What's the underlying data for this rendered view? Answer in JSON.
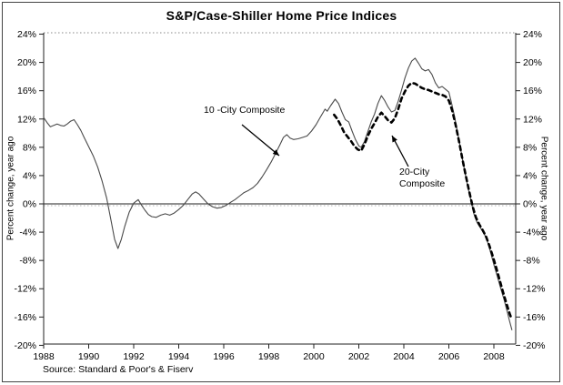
{
  "chart_data": {
    "type": "line",
    "title": "S&P/Case-Shiller Home Price Indices",
    "ylabel_left": "Percent change, year ago",
    "ylabel_right": "Percent change, year ago",
    "source": "Source: Standard & Poor's & Fiserv",
    "xlim": [
      1988,
      2008.97
    ],
    "ylim": [
      -20,
      24
    ],
    "x_ticks": [
      1988,
      1990,
      1992,
      1994,
      1996,
      1998,
      2000,
      2002,
      2004,
      2006,
      2008
    ],
    "y_ticks": [
      24,
      20,
      16,
      12,
      8,
      4,
      0,
      -4,
      -8,
      -12,
      -16,
      -20
    ],
    "y_tick_suffix": "%",
    "grid": {
      "top_dotted_line": true,
      "zero_axis_line": true,
      "legend": "none"
    },
    "colors": {
      "ten_city_line": "#4a4a4a",
      "twenty_city_line": "#000000"
    },
    "annotations": [
      {
        "text": "10 -City Composite",
        "lines": [
          "10 -City Composite"
        ]
      },
      {
        "text": "20-City Composite",
        "lines": [
          "20-City",
          "Composite"
        ]
      }
    ],
    "series": [
      {
        "name": "10 -City Composite",
        "style": "solid",
        "color": "#4a4a4a",
        "width": 1.1,
        "dash": "",
        "data_name": "ten-city-composite-line",
        "points": [
          [
            1988.0,
            12.2
          ],
          [
            1988.15,
            11.5
          ],
          [
            1988.3,
            10.9
          ],
          [
            1988.45,
            11.1
          ],
          [
            1988.6,
            11.3
          ],
          [
            1988.75,
            11.1
          ],
          [
            1988.9,
            11.0
          ],
          [
            1989.05,
            11.3
          ],
          [
            1989.2,
            11.7
          ],
          [
            1989.35,
            11.9
          ],
          [
            1989.5,
            11.2
          ],
          [
            1989.65,
            10.4
          ],
          [
            1989.8,
            9.4
          ],
          [
            1990.0,
            8.1
          ],
          [
            1990.2,
            6.8
          ],
          [
            1990.4,
            5.2
          ],
          [
            1990.6,
            3.2
          ],
          [
            1990.8,
            0.8
          ],
          [
            1991.0,
            -2.5
          ],
          [
            1991.15,
            -5.0
          ],
          [
            1991.3,
            -6.3
          ],
          [
            1991.45,
            -5.0
          ],
          [
            1991.6,
            -3.2
          ],
          [
            1991.8,
            -1.2
          ],
          [
            1992.0,
            0.1
          ],
          [
            1992.2,
            0.6
          ],
          [
            1992.35,
            -0.2
          ],
          [
            1992.5,
            -0.9
          ],
          [
            1992.65,
            -1.5
          ],
          [
            1992.8,
            -1.8
          ],
          [
            1993.0,
            -1.9
          ],
          [
            1993.2,
            -1.6
          ],
          [
            1993.4,
            -1.4
          ],
          [
            1993.6,
            -1.6
          ],
          [
            1993.8,
            -1.3
          ],
          [
            1994.0,
            -0.8
          ],
          [
            1994.2,
            -0.2
          ],
          [
            1994.4,
            0.6
          ],
          [
            1994.6,
            1.4
          ],
          [
            1994.75,
            1.7
          ],
          [
            1994.9,
            1.4
          ],
          [
            1995.1,
            0.7
          ],
          [
            1995.3,
            0.0
          ],
          [
            1995.5,
            -0.4
          ],
          [
            1995.7,
            -0.6
          ],
          [
            1995.9,
            -0.5
          ],
          [
            1996.1,
            -0.2
          ],
          [
            1996.3,
            0.2
          ],
          [
            1996.5,
            0.6
          ],
          [
            1996.7,
            1.1
          ],
          [
            1996.9,
            1.6
          ],
          [
            1997.1,
            1.9
          ],
          [
            1997.3,
            2.3
          ],
          [
            1997.5,
            2.9
          ],
          [
            1997.7,
            3.8
          ],
          [
            1997.9,
            4.8
          ],
          [
            1998.1,
            5.9
          ],
          [
            1998.3,
            7.1
          ],
          [
            1998.5,
            8.4
          ],
          [
            1998.65,
            9.4
          ],
          [
            1998.8,
            9.8
          ],
          [
            1998.95,
            9.3
          ],
          [
            1999.1,
            9.1
          ],
          [
            1999.3,
            9.2
          ],
          [
            1999.5,
            9.4
          ],
          [
            1999.7,
            9.6
          ],
          [
            1999.9,
            10.3
          ],
          [
            2000.1,
            11.2
          ],
          [
            2000.3,
            12.3
          ],
          [
            2000.5,
            13.4
          ],
          [
            2000.6,
            13.1
          ],
          [
            2000.75,
            13.9
          ],
          [
            2000.95,
            14.8
          ],
          [
            2001.1,
            14.2
          ],
          [
            2001.25,
            13.0
          ],
          [
            2001.4,
            11.9
          ],
          [
            2001.55,
            11.6
          ],
          [
            2001.7,
            10.3
          ],
          [
            2001.85,
            9.1
          ],
          [
            2002.0,
            8.2
          ],
          [
            2002.1,
            8.0
          ],
          [
            2002.25,
            8.8
          ],
          [
            2002.4,
            10.2
          ],
          [
            2002.55,
            11.6
          ],
          [
            2002.7,
            12.7
          ],
          [
            2002.85,
            14.2
          ],
          [
            2003.0,
            15.3
          ],
          [
            2003.15,
            14.6
          ],
          [
            2003.3,
            13.7
          ],
          [
            2003.45,
            13.0
          ],
          [
            2003.6,
            13.2
          ],
          [
            2003.75,
            14.5
          ],
          [
            2003.9,
            16.1
          ],
          [
            2004.05,
            17.8
          ],
          [
            2004.2,
            19.2
          ],
          [
            2004.35,
            20.2
          ],
          [
            2004.5,
            20.6
          ],
          [
            2004.65,
            19.9
          ],
          [
            2004.8,
            19.1
          ],
          [
            2004.95,
            18.8
          ],
          [
            2005.1,
            19.0
          ],
          [
            2005.25,
            18.3
          ],
          [
            2005.4,
            17.1
          ],
          [
            2005.55,
            16.4
          ],
          [
            2005.7,
            16.6
          ],
          [
            2005.85,
            16.2
          ],
          [
            2006.0,
            15.8
          ],
          [
            2006.1,
            14.5
          ],
          [
            2006.25,
            12.4
          ],
          [
            2006.4,
            9.9
          ],
          [
            2006.55,
            7.3
          ],
          [
            2006.7,
            4.7
          ],
          [
            2006.85,
            2.3
          ],
          [
            2007.0,
            0.2
          ],
          [
            2007.1,
            -1.3
          ],
          [
            2007.25,
            -2.6
          ],
          [
            2007.4,
            -3.4
          ],
          [
            2007.55,
            -4.1
          ],
          [
            2007.7,
            -5.2
          ],
          [
            2007.85,
            -6.8
          ],
          [
            2008.0,
            -8.6
          ],
          [
            2008.15,
            -10.2
          ],
          [
            2008.3,
            -11.9
          ],
          [
            2008.45,
            -13.5
          ],
          [
            2008.6,
            -15.3
          ],
          [
            2008.7,
            -16.6
          ],
          [
            2008.8,
            -17.8
          ]
        ]
      },
      {
        "name": "20-City Composite",
        "style": "dashed-bold",
        "color": "#000000",
        "width": 2.6,
        "dash": "4.5,4.2",
        "data_name": "twenty-city-composite-line",
        "points": [
          [
            2000.9,
            12.6
          ],
          [
            2001.05,
            12.0
          ],
          [
            2001.2,
            11.1
          ],
          [
            2001.35,
            10.1
          ],
          [
            2001.5,
            9.5
          ],
          [
            2001.65,
            8.9
          ],
          [
            2001.8,
            8.2
          ],
          [
            2001.95,
            7.7
          ],
          [
            2002.1,
            7.5
          ],
          [
            2002.25,
            8.4
          ],
          [
            2002.4,
            9.6
          ],
          [
            2002.55,
            10.6
          ],
          [
            2002.7,
            11.4
          ],
          [
            2002.85,
            12.3
          ],
          [
            2003.0,
            12.9
          ],
          [
            2003.15,
            12.4
          ],
          [
            2003.3,
            11.8
          ],
          [
            2003.45,
            11.5
          ],
          [
            2003.6,
            12.1
          ],
          [
            2003.75,
            13.4
          ],
          [
            2003.9,
            14.9
          ],
          [
            2004.05,
            15.9
          ],
          [
            2004.2,
            16.7
          ],
          [
            2004.35,
            17.1
          ],
          [
            2004.5,
            17.0
          ],
          [
            2004.65,
            16.7
          ],
          [
            2004.8,
            16.4
          ],
          [
            2004.95,
            16.2
          ],
          [
            2005.1,
            16.1
          ],
          [
            2005.25,
            15.9
          ],
          [
            2005.4,
            15.7
          ],
          [
            2005.55,
            15.5
          ],
          [
            2005.7,
            15.4
          ],
          [
            2005.85,
            15.2
          ],
          [
            2006.0,
            14.6
          ],
          [
            2006.15,
            13.2
          ],
          [
            2006.3,
            11.2
          ],
          [
            2006.45,
            8.9
          ],
          [
            2006.6,
            6.4
          ],
          [
            2006.75,
            4.0
          ],
          [
            2006.9,
            1.8
          ],
          [
            2007.05,
            -0.3
          ],
          [
            2007.2,
            -1.9
          ],
          [
            2007.35,
            -2.9
          ],
          [
            2007.5,
            -3.7
          ],
          [
            2007.65,
            -4.6
          ],
          [
            2007.8,
            -5.9
          ],
          [
            2007.95,
            -7.4
          ],
          [
            2008.1,
            -9.0
          ],
          [
            2008.25,
            -10.7
          ],
          [
            2008.4,
            -12.4
          ],
          [
            2008.55,
            -14.0
          ],
          [
            2008.7,
            -15.5
          ],
          [
            2008.8,
            -16.4
          ]
        ]
      }
    ]
  }
}
